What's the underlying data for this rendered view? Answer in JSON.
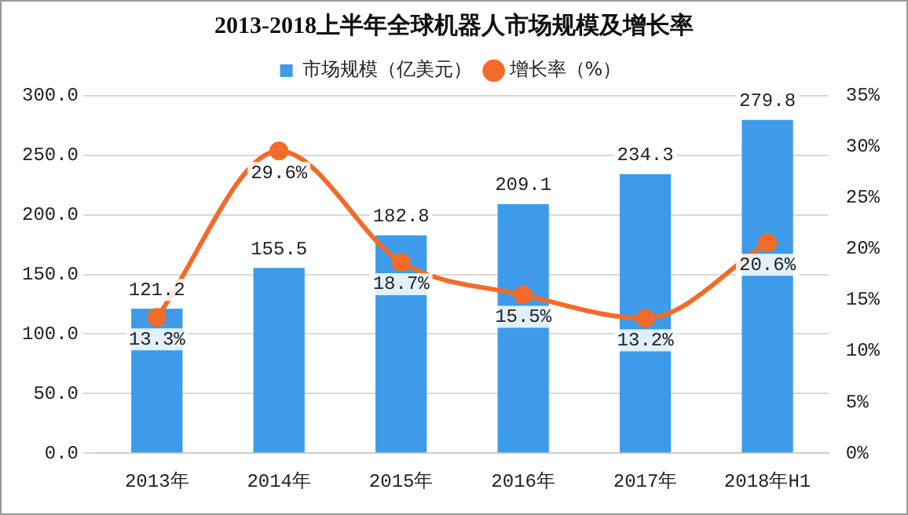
{
  "chart_data": {
    "type": "bar",
    "title": "2013-2018上半年全球机器人市场规模及增长率",
    "categories": [
      "2013年",
      "2014年",
      "2015年",
      "2016年",
      "2017年",
      "2018年H1"
    ],
    "series": [
      {
        "name": "市场规模（亿美元）",
        "color": "#3d9be9",
        "values": [
          121.2,
          155.5,
          182.8,
          209.1,
          234.3,
          279.8
        ],
        "value_labels": [
          "121.2",
          "155.5",
          "182.8",
          "209.1",
          "234.3",
          "279.8"
        ]
      },
      {
        "name": "增长率（%）",
        "type": "line",
        "axis": "y2",
        "color": "#f26b2a",
        "values": [
          13.3,
          29.6,
          18.7,
          15.5,
          13.2,
          20.6
        ],
        "value_labels": [
          "13.3%",
          "29.6%",
          "18.7%",
          "15.5%",
          "13.2%",
          "20.6%"
        ]
      }
    ],
    "ylim": [
      0,
      300
    ],
    "yticks": [
      {
        "value": 0,
        "label": "0.0"
      },
      {
        "value": 50,
        "label": "50.0"
      },
      {
        "value": 100,
        "label": "100.0"
      },
      {
        "value": 150,
        "label": "150.0"
      },
      {
        "value": 200,
        "label": "200.0"
      },
      {
        "value": 250,
        "label": "250.0"
      },
      {
        "value": 300,
        "label": "300.0"
      }
    ],
    "y2lim": [
      0,
      35
    ],
    "y2ticks": [
      {
        "value": 0,
        "label": "0%"
      },
      {
        "value": 5,
        "label": "5%"
      },
      {
        "value": 10,
        "label": "10%"
      },
      {
        "value": 15,
        "label": "15%"
      },
      {
        "value": 20,
        "label": "20%"
      },
      {
        "value": 25,
        "label": "25%"
      },
      {
        "value": 30,
        "label": "30%"
      },
      {
        "value": 35,
        "label": "35%"
      }
    ],
    "grid": "y",
    "legend": "top",
    "marker": "circle",
    "line_style": "solid"
  }
}
